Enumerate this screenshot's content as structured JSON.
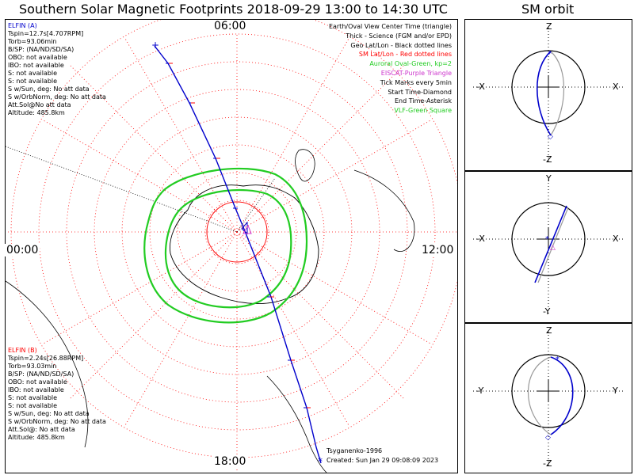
{
  "title": "Southern Solar Magnetic Footprints 2018-09-29 13:00 to 14:30 UTC",
  "sm_orbit_title": "SM orbit",
  "clock_labels": {
    "top": "06:00",
    "bottom": "18:00",
    "left": "00:00",
    "right": "12:00"
  },
  "elfin_a": {
    "name": "ELFIN (A)",
    "lines": [
      "Tspin=12.7s[4.707RPM]",
      "Torb=93.06min",
      "B/SP: (NA/ND/SD/SA)",
      "OBO: not available",
      "IBO: not available",
      "S: not available",
      "S: not available",
      "S w/Sun, deg: No att data",
      "S w/OrbNorm, deg: No att data",
      "Att.Sol@No att data",
      "Altitude: 485.8km"
    ]
  },
  "elfin_b": {
    "name": "ELFIN (B)",
    "lines": [
      "Tspin=2.24s[26.88RPM]",
      "Torb=93.03min",
      "B/SP: (NA/ND/SD/SA)",
      "OBO: not available",
      "IBO: not available",
      "S: not available",
      "S: not available",
      "S w/Sun, deg: No att data",
      "S w/OrbNorm, deg: No att data",
      "Att.Sol@: No att data",
      "Altitude: 485.8km"
    ]
  },
  "legend": [
    {
      "text": "Earth/Oval View Center Time (triangle)",
      "color": "#000000"
    },
    {
      "text": "Thick - Science (FGM and/or EPD)",
      "color": "#000000"
    },
    {
      "text": "Geo Lat/Lon - Black dotted lines",
      "color": "#000000"
    },
    {
      "text": "SM Lat/Lon - Red dotted lines",
      "color": "#ff0000"
    },
    {
      "text": "Auroral Oval-Green, kp=2",
      "color": "#22cc22"
    },
    {
      "text": "EISCAT-Purple Triangle",
      "color": "#cc33cc"
    },
    {
      "text": "Tick Marks every 5min",
      "color": "#000000"
    },
    {
      "text": "Start Time-Diamond",
      "color": "#000000"
    },
    {
      "text": "End Time-Asterisk",
      "color": "#000000"
    },
    {
      "text": "VLF-Green Square",
      "color": "#22cc22"
    }
  ],
  "credit": {
    "line1": "Tsyganenko-1996",
    "line2": "Created: Sun Jan 29 09:08:09 2023"
  },
  "panels": [
    {
      "top": "Z",
      "bottom": "-Z",
      "left": "-X",
      "right": "X"
    },
    {
      "top": "Y",
      "bottom": "-Y",
      "left": "-X",
      "right": "X"
    },
    {
      "top": "Z",
      "bottom": "-Z",
      "left": "-Y",
      "right": "Y"
    }
  ],
  "colors": {
    "track": "#0000cc",
    "sm_grid": "#ff0000",
    "oval": "#22cc22",
    "eiscat": "#cc33cc",
    "elfin_a": "#0000cc",
    "elfin_b": "#ff0000"
  }
}
